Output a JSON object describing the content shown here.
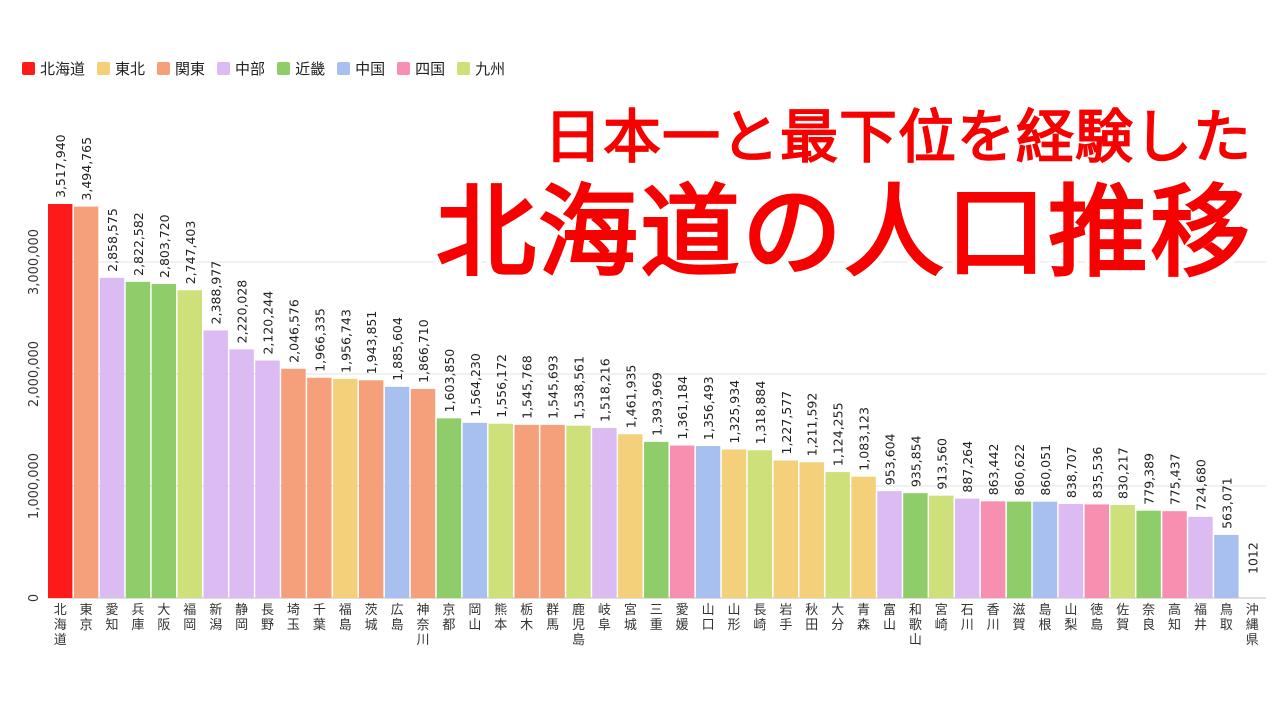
{
  "headline": {
    "subtitle": "日本一と最下位を経験した",
    "title": "北海道の人口推移"
  },
  "colors": {
    "北海道": "#ff1a1a",
    "東北": "#f5d07a",
    "関東": "#f5a07a",
    "中部": "#dcbaf2",
    "近畿": "#8fcc6a",
    "中国": "#a8c0f0",
    "四国": "#f78fb0",
    "九州": "#cde07a"
  },
  "chart_data": {
    "type": "bar",
    "legend": [
      "北海道",
      "東北",
      "関東",
      "中部",
      "近畿",
      "中国",
      "四国",
      "九州"
    ],
    "legend_position": "top-left",
    "grid": true,
    "ylim": [
      0,
      3900000
    ],
    "y_ticks": [
      {
        "value": 0,
        "label": "0"
      },
      {
        "value": 1000000,
        "label": "1,000,000"
      },
      {
        "value": 2000000,
        "label": "2,000,000"
      },
      {
        "value": 3000000,
        "label": "3,000,000"
      }
    ],
    "bars": [
      {
        "name": "北海道",
        "region": "北海道",
        "value": 3517940,
        "label": "3,517,940"
      },
      {
        "name": "東京",
        "region": "関東",
        "value": 3494765,
        "label": "3,494,765"
      },
      {
        "name": "愛知",
        "region": "中部",
        "value": 2858575,
        "label": "2,858,575"
      },
      {
        "name": "兵庫",
        "region": "近畿",
        "value": 2822582,
        "label": "2,822,582"
      },
      {
        "name": "大阪",
        "region": "近畿",
        "value": 2803720,
        "label": "2,803,720"
      },
      {
        "name": "福岡",
        "region": "九州",
        "value": 2747403,
        "label": "2,747,403"
      },
      {
        "name": "新潟",
        "region": "中部",
        "value": 2388977,
        "label": "2,388,977"
      },
      {
        "name": "静岡",
        "region": "中部",
        "value": 2220028,
        "label": "2,220,028"
      },
      {
        "name": "長野",
        "region": "中部",
        "value": 2120244,
        "label": "2,120,244"
      },
      {
        "name": "埼玉",
        "region": "関東",
        "value": 2046576,
        "label": "2,046,576"
      },
      {
        "name": "千葉",
        "region": "関東",
        "value": 1966335,
        "label": "1,966,335"
      },
      {
        "name": "福島",
        "region": "東北",
        "value": 1956743,
        "label": "1,956,743"
      },
      {
        "name": "茨城",
        "region": "関東",
        "value": 1943851,
        "label": "1,943,851"
      },
      {
        "name": "広島",
        "region": "中国",
        "value": 1885604,
        "label": "1,885,604"
      },
      {
        "name": "神奈川",
        "region": "関東",
        "value": 1866710,
        "label": "1,866,710"
      },
      {
        "name": "京都",
        "region": "近畿",
        "value": 1603850,
        "label": "1,603,850"
      },
      {
        "name": "岡山",
        "region": "中国",
        "value": 1564230,
        "label": "1,564,230"
      },
      {
        "name": "熊本",
        "region": "九州",
        "value": 1556172,
        "label": "1,556,172"
      },
      {
        "name": "栃木",
        "region": "関東",
        "value": 1545768,
        "label": "1,545,768"
      },
      {
        "name": "群馬",
        "region": "関東",
        "value": 1545693,
        "label": "1,545,693"
      },
      {
        "name": "鹿児島",
        "region": "九州",
        "value": 1538561,
        "label": "1,538,561"
      },
      {
        "name": "岐阜",
        "region": "中部",
        "value": 1518216,
        "label": "1,518,216"
      },
      {
        "name": "宮城",
        "region": "東北",
        "value": 1461935,
        "label": "1,461,935"
      },
      {
        "name": "三重",
        "region": "近畿",
        "value": 1393969,
        "label": "1,393,969"
      },
      {
        "name": "愛媛",
        "region": "四国",
        "value": 1361184,
        "label": "1,361,184"
      },
      {
        "name": "山口",
        "region": "中国",
        "value": 1356493,
        "label": "1,356,493"
      },
      {
        "name": "山形",
        "region": "東北",
        "value": 1325934,
        "label": "1,325,934"
      },
      {
        "name": "長崎",
        "region": "九州",
        "value": 1318884,
        "label": "1,318,884"
      },
      {
        "name": "岩手",
        "region": "東北",
        "value": 1227577,
        "label": "1,227,577"
      },
      {
        "name": "秋田",
        "region": "東北",
        "value": 1211592,
        "label": "1,211,592"
      },
      {
        "name": "大分",
        "region": "九州",
        "value": 1124255,
        "label": "1,124,255"
      },
      {
        "name": "青森",
        "region": "東北",
        "value": 1083123,
        "label": "1,083,123"
      },
      {
        "name": "富山",
        "region": "中部",
        "value": 953604,
        "label": "953,604"
      },
      {
        "name": "和歌山",
        "region": "近畿",
        "value": 935854,
        "label": "935,854"
      },
      {
        "name": "宮崎",
        "region": "九州",
        "value": 913560,
        "label": "913,560"
      },
      {
        "name": "石川",
        "region": "中部",
        "value": 887264,
        "label": "887,264"
      },
      {
        "name": "香川",
        "region": "四国",
        "value": 863442,
        "label": "863,442"
      },
      {
        "name": "滋賀",
        "region": "近畿",
        "value": 860622,
        "label": "860,622"
      },
      {
        "name": "島根",
        "region": "中国",
        "value": 860051,
        "label": "860,051"
      },
      {
        "name": "山梨",
        "region": "中部",
        "value": 838707,
        "label": "838,707"
      },
      {
        "name": "徳島",
        "region": "四国",
        "value": 835536,
        "label": "835,536"
      },
      {
        "name": "佐賀",
        "region": "九州",
        "value": 830217,
        "label": "830,217"
      },
      {
        "name": "奈良",
        "region": "近畿",
        "value": 779389,
        "label": "779,389"
      },
      {
        "name": "高知",
        "region": "四国",
        "value": 775437,
        "label": "775,437"
      },
      {
        "name": "福井",
        "region": "中部",
        "value": 724680,
        "label": "724,680"
      },
      {
        "name": "鳥取",
        "region": "中国",
        "value": 563071,
        "label": "563,071"
      },
      {
        "name": "沖縄県",
        "region": "九州",
        "value": 1012,
        "label": "1012"
      }
    ]
  }
}
